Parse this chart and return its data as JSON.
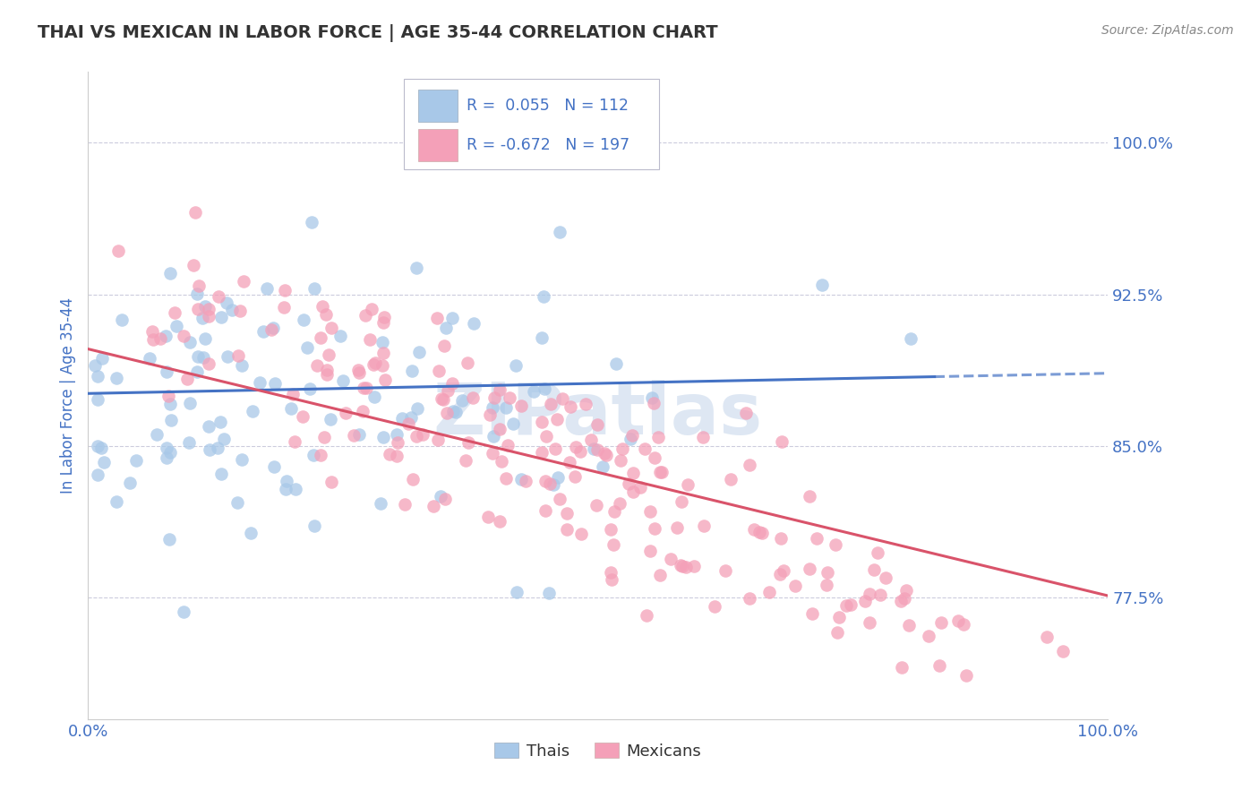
{
  "title": "THAI VS MEXICAN IN LABOR FORCE | AGE 35-44 CORRELATION CHART",
  "source": "Source: ZipAtlas.com",
  "ylabel": "In Labor Force | Age 35-44",
  "xlim": [
    0.0,
    1.0
  ],
  "ylim": [
    0.715,
    1.035
  ],
  "yticks": [
    0.775,
    0.85,
    0.925,
    1.0
  ],
  "ytick_labels": [
    "77.5%",
    "85.0%",
    "92.5%",
    "100.0%"
  ],
  "xtick_labels": [
    "0.0%",
    "100.0%"
  ],
  "thai_color": "#a8c8e8",
  "mexican_color": "#f4a0b8",
  "thai_line_color": "#4472c4",
  "mexican_line_color": "#d9536a",
  "watermark": "ZIPatlas",
  "background_color": "#ffffff",
  "grid_color": "#ccccdd",
  "title_color": "#333333",
  "tick_color": "#4472c4",
  "thai_R": 0.055,
  "thai_N": 112,
  "mex_R": -0.672,
  "mex_N": 197,
  "thai_intercept": 0.876,
  "thai_slope": 0.01,
  "mex_intercept": 0.898,
  "mex_slope": -0.122
}
